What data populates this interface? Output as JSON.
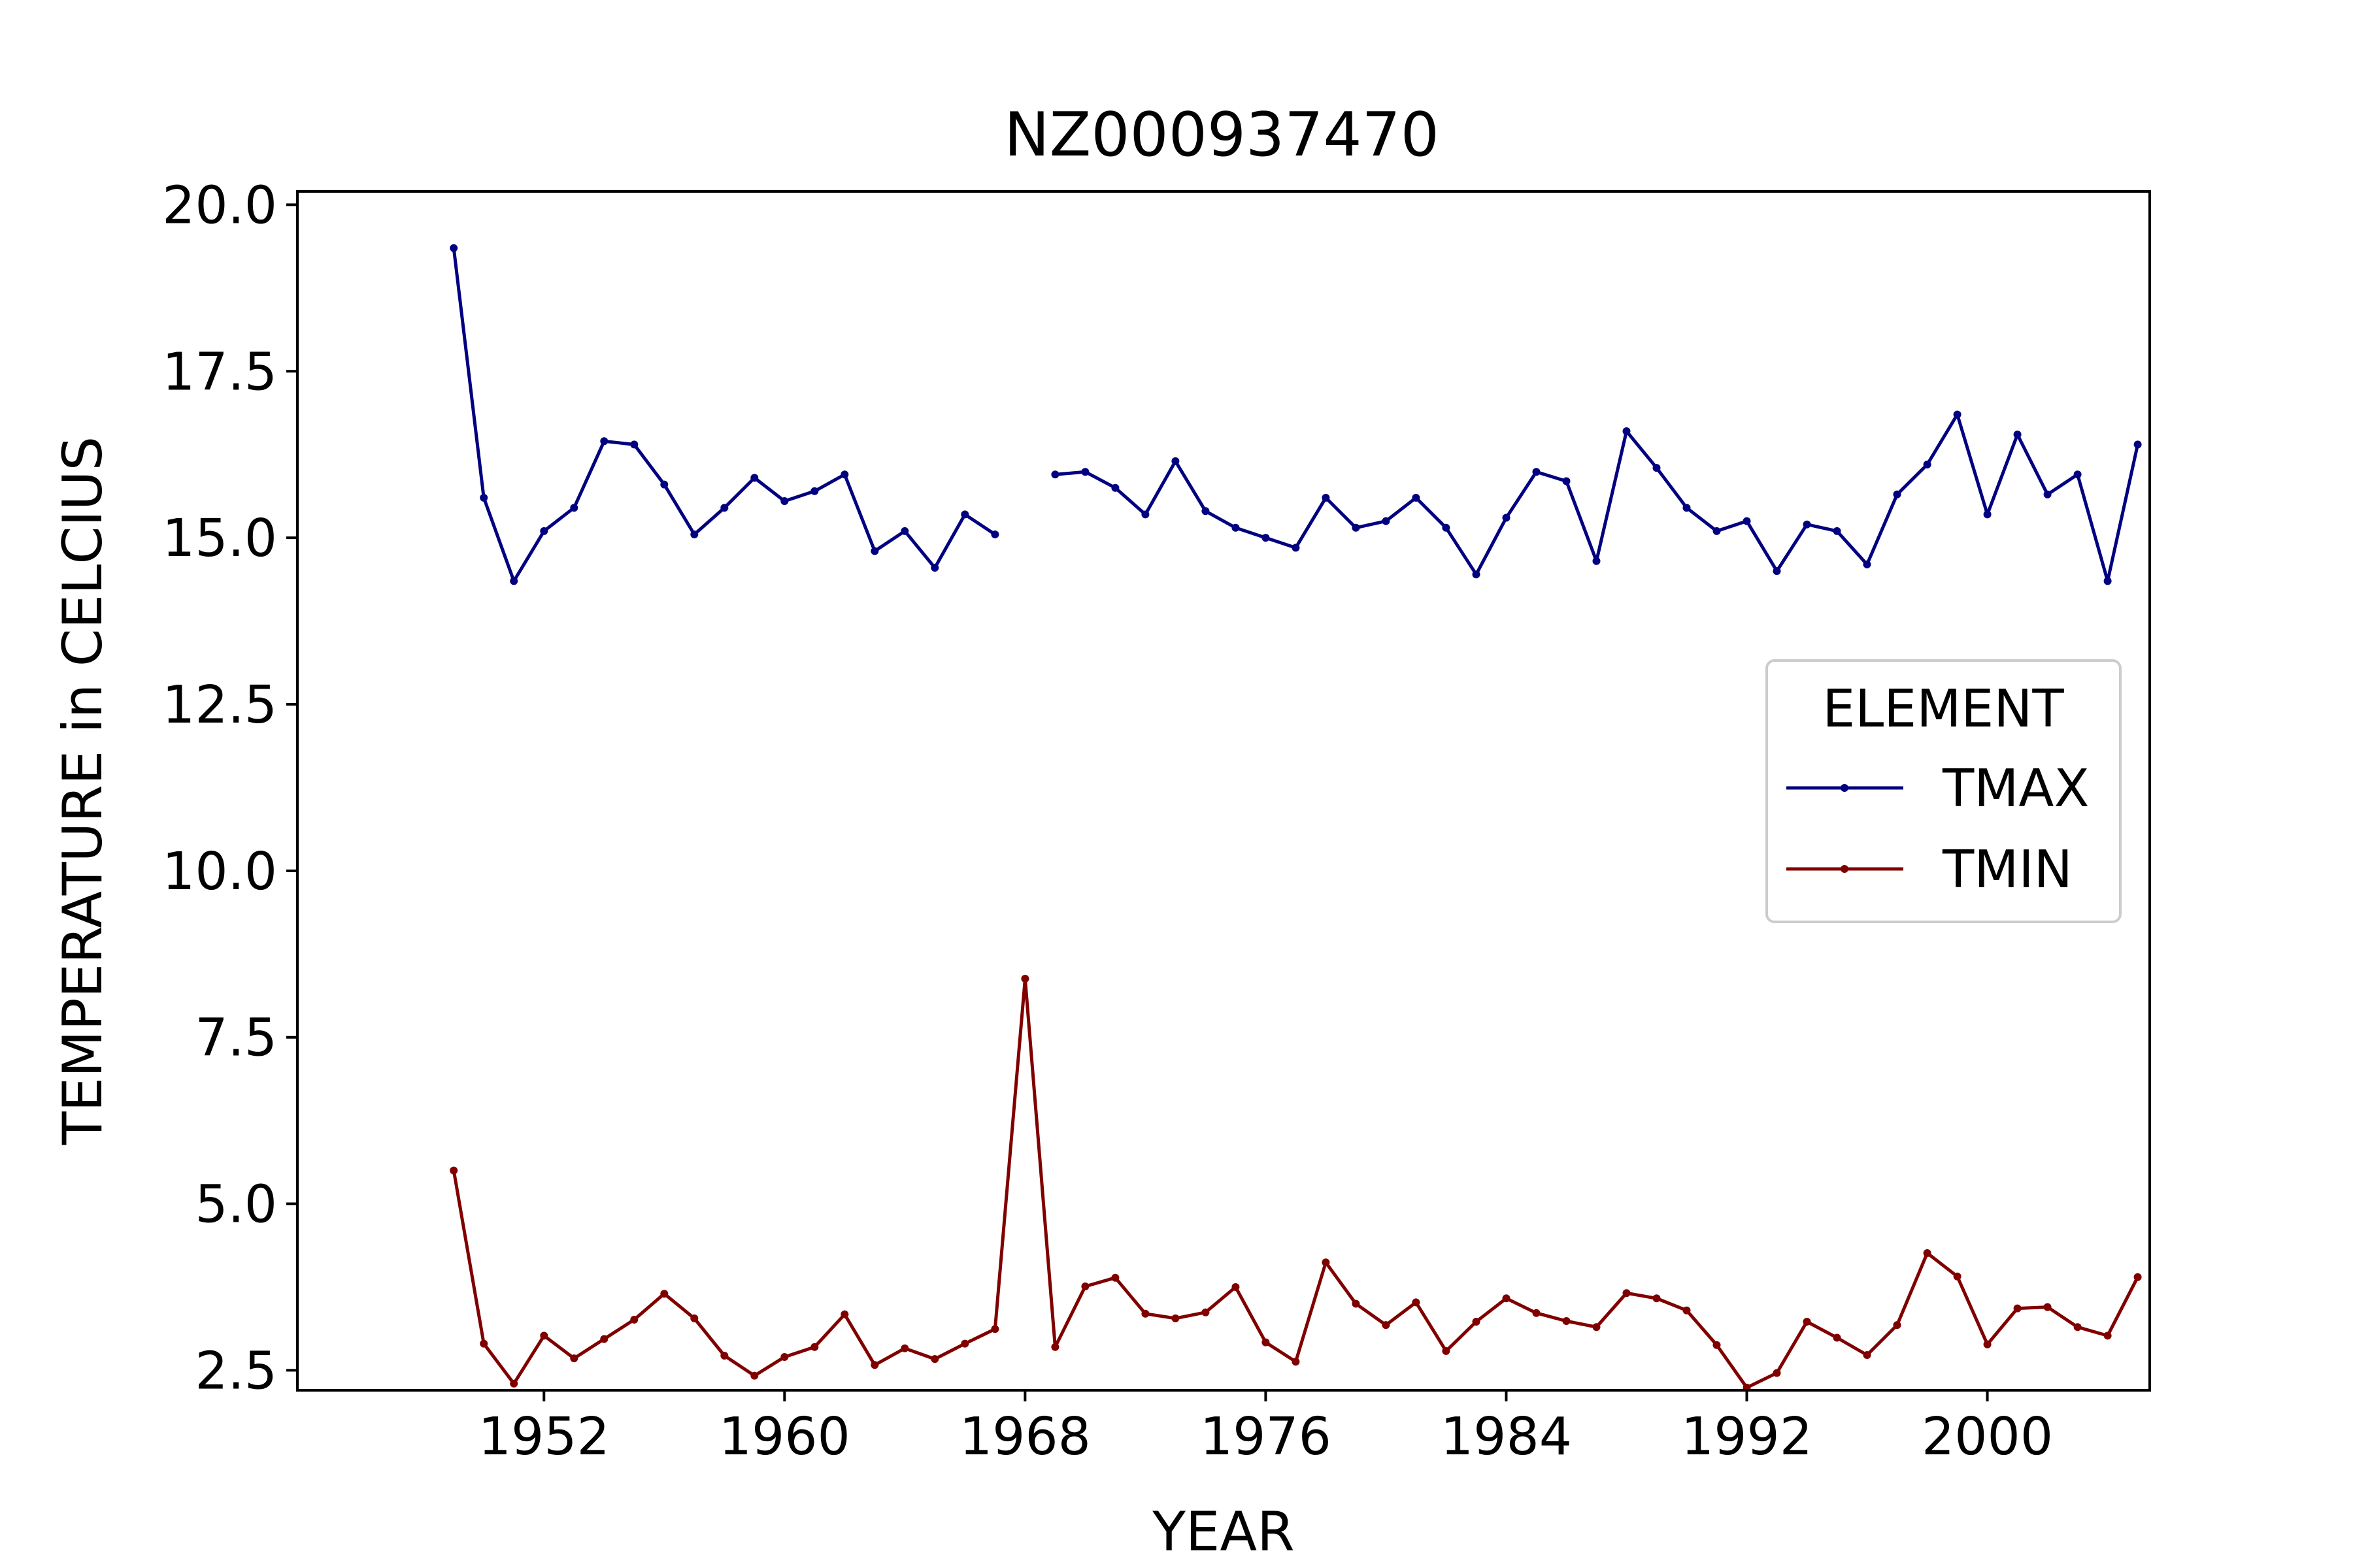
{
  "chart_data": {
    "type": "line",
    "title": "NZ000937470",
    "xlabel": "YEAR",
    "ylabel": "TEMPERATURE in CELCIUS",
    "xlim": [
      1943.8,
      2005.4
    ],
    "ylim": [
      2.2,
      20.2
    ],
    "xticks": [
      1952,
      1960,
      1968,
      1976,
      1984,
      1992,
      2000
    ],
    "xtick_labels": [
      "1952",
      "1960",
      "1968",
      "1976",
      "1984",
      "1992",
      "2000"
    ],
    "yticks": [
      2.5,
      5.0,
      7.5,
      10.0,
      12.5,
      15.0,
      17.5,
      20.0
    ],
    "ytick_labels": [
      "2.5",
      "5.0",
      "7.5",
      "10.0",
      "12.5",
      "15.0",
      "17.5",
      "20.0"
    ],
    "grid": false,
    "legend": {
      "title": "ELEMENT",
      "placement": "center-right"
    },
    "x": [
      1949,
      1950,
      1951,
      1952,
      1953,
      1954,
      1955,
      1956,
      1957,
      1958,
      1959,
      1960,
      1961,
      1962,
      1963,
      1964,
      1965,
      1966,
      1967,
      1968,
      1969,
      1970,
      1971,
      1972,
      1973,
      1974,
      1975,
      1976,
      1977,
      1978,
      1979,
      1980,
      1981,
      1982,
      1983,
      1984,
      1985,
      1986,
      1987,
      1988,
      1989,
      1990,
      1991,
      1992,
      1993,
      1994,
      1995,
      1996,
      1997,
      1998,
      1999,
      2000,
      2001,
      2002,
      2003,
      2004,
      2005
    ],
    "series": [
      {
        "name": "TMAX",
        "color": "#000080",
        "values": [
          19.35,
          15.6,
          14.35,
          15.1,
          15.45,
          16.45,
          16.4,
          15.8,
          15.05,
          15.45,
          15.9,
          15.55,
          15.7,
          15.95,
          14.8,
          15.1,
          14.55,
          15.35,
          15.05,
          null,
          15.95,
          15.99,
          15.75,
          15.35,
          16.15,
          15.4,
          15.15,
          15.0,
          14.85,
          15.6,
          15.15,
          15.25,
          15.6,
          15.15,
          14.45,
          15.3,
          15.99,
          15.85,
          14.65,
          16.6,
          16.05,
          15.45,
          15.1,
          15.25,
          14.5,
          15.2,
          15.1,
          14.6,
          15.65,
          16.1,
          16.85,
          15.35,
          16.55,
          15.65,
          15.95,
          14.35,
          16.4
        ]
      },
      {
        "name": "TMIN",
        "color": "#800000",
        "values": [
          5.5,
          2.9,
          2.3,
          3.02,
          2.68,
          2.97,
          3.26,
          3.65,
          3.28,
          2.72,
          2.42,
          2.7,
          2.85,
          3.34,
          2.58,
          2.83,
          2.67,
          2.9,
          3.12,
          8.38,
          2.85,
          3.76,
          3.89,
          3.35,
          3.28,
          3.37,
          3.75,
          2.92,
          2.63,
          4.12,
          3.5,
          3.18,
          3.52,
          2.79,
          3.23,
          3.58,
          3.36,
          3.24,
          3.15,
          3.66,
          3.58,
          3.4,
          2.88,
          2.24,
          2.46,
          3.23,
          2.99,
          2.73,
          3.18,
          4.26,
          3.91,
          2.89,
          3.43,
          3.45,
          3.15,
          3.02,
          3.9
        ]
      }
    ]
  }
}
